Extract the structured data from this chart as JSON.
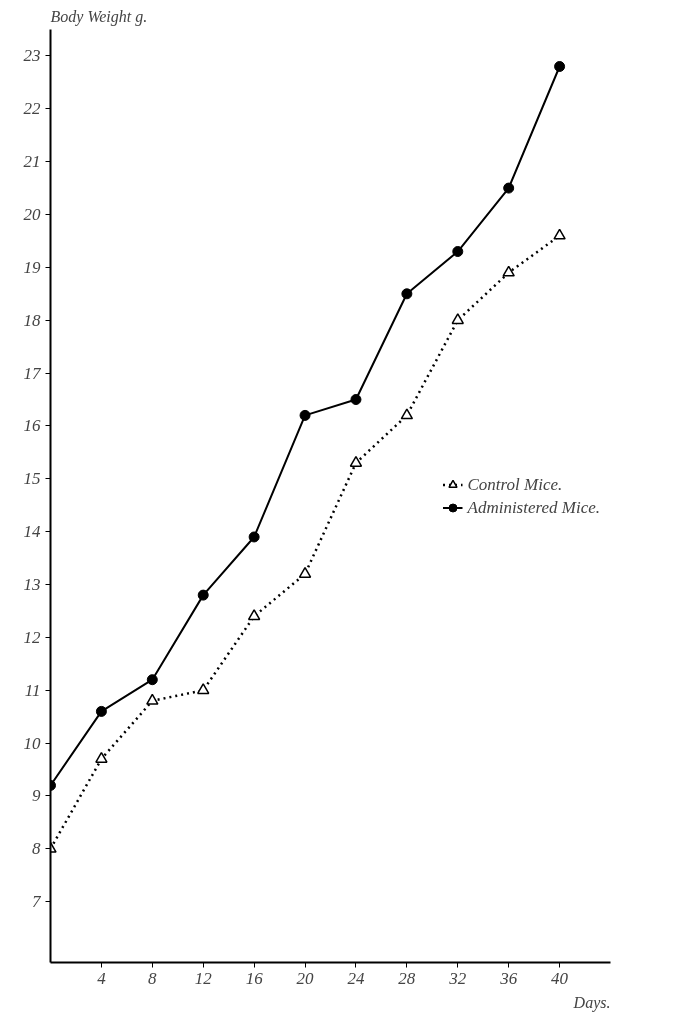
{
  "chart_data": {
    "type": "line",
    "ylabel": "Body Weight g.",
    "xlabel": "Days.",
    "x": [
      0,
      4,
      8,
      12,
      16,
      20,
      24,
      28,
      32,
      36,
      40
    ],
    "series": [
      {
        "name": "Control Mice.",
        "color": "#000000",
        "marker": "triangle",
        "line_style": "dotted",
        "values": [
          8.0,
          9.7,
          10.8,
          11.0,
          12.4,
          13.2,
          15.3,
          16.2,
          18.0,
          18.9,
          19.6
        ]
      },
      {
        "name": "Administered Mice.",
        "color": "#000000",
        "marker": "circle",
        "line_style": "solid",
        "values": [
          9.2,
          10.6,
          11.2,
          12.8,
          13.9,
          16.2,
          16.5,
          18.5,
          19.3,
          20.5,
          22.8
        ]
      }
    ],
    "xlim": [
      0,
      44
    ],
    "ylim": [
      5.85,
      23.5
    ],
    "xticks": [
      4,
      8,
      12,
      16,
      20,
      24,
      28,
      32,
      36,
      40
    ],
    "yticks": [
      7,
      8,
      9,
      10,
      11,
      12,
      13,
      14,
      15,
      16,
      17,
      18,
      19,
      20,
      21,
      22,
      23
    ],
    "grid": false,
    "legend": "right"
  }
}
